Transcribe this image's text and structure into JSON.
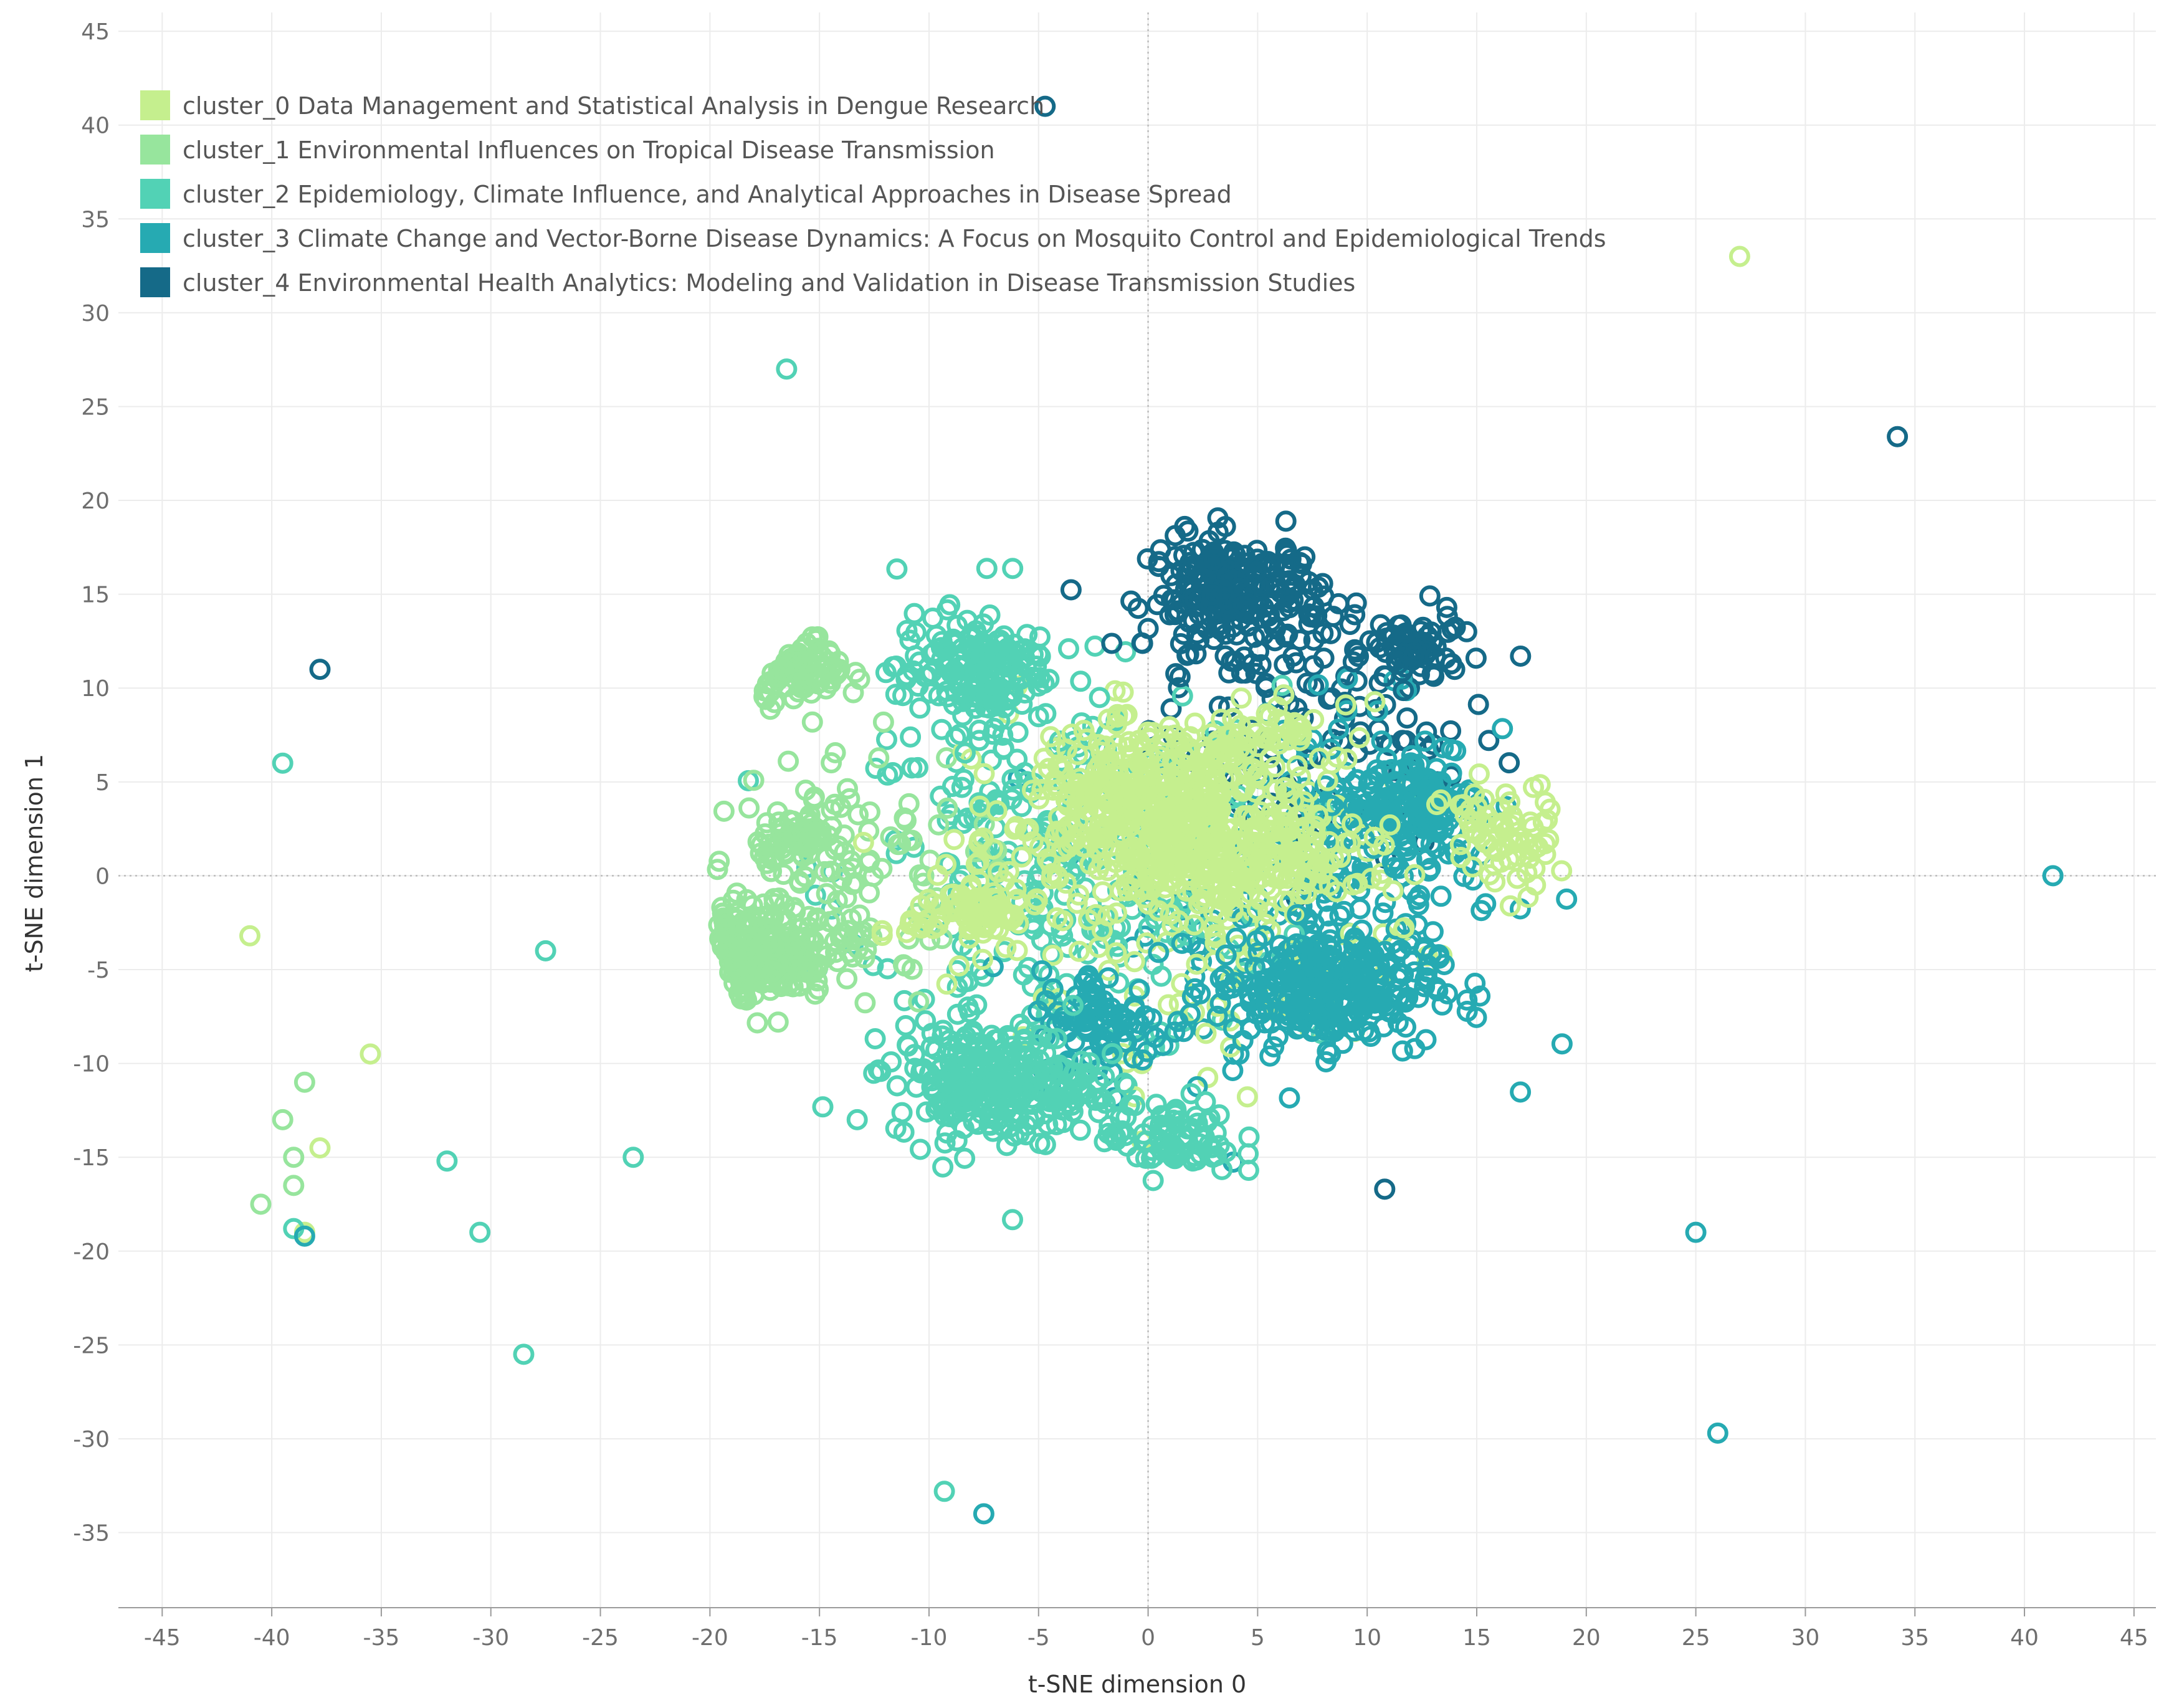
{
  "chart_data": {
    "type": "scatter",
    "title": "",
    "xlabel": "t-SNE dimension 0",
    "ylabel": "t-SNE dimension 1",
    "xlim": [
      -47,
      46
    ],
    "ylim": [
      -39,
      46
    ],
    "xticks": [
      -45,
      -40,
      -35,
      -30,
      -25,
      -20,
      -15,
      -10,
      -5,
      0,
      5,
      10,
      15,
      20,
      25,
      30,
      35,
      40,
      45
    ],
    "yticks": [
      -35,
      -30,
      -25,
      -20,
      -15,
      -10,
      -5,
      0,
      5,
      10,
      15,
      20,
      25,
      30,
      35,
      40,
      45
    ],
    "xtick_labels": [
      "-45",
      "-40",
      "-35",
      "-30",
      "-25",
      "-20",
      "-15",
      "-10",
      "-5",
      "0",
      "5",
      "10",
      "15",
      "20",
      "25",
      "30",
      "35",
      "40",
      "45"
    ],
    "ytick_labels": [
      "-35",
      "-30",
      "-25",
      "-20",
      "-15",
      "-10",
      "-5",
      "0",
      "5",
      "10",
      "15",
      "20",
      "25",
      "30",
      "35",
      "40",
      "45"
    ],
    "grid": true,
    "zero_lines": "dotted",
    "marker": "hollow-circle",
    "legend_position": "top-left",
    "series": [
      {
        "name": "cluster_0 Data Management and Statistical Analysis in Dengue Research",
        "color": "#c5ef8e",
        "dense_regions": [
          {
            "center": [
              0,
              4
            ],
            "spread": [
              5.5,
              3.5
            ],
            "count": 320
          },
          {
            "center": [
              4,
              1
            ],
            "spread": [
              6,
              2.5
            ],
            "count": 220
          },
          {
            "center": [
              -8,
              -2
            ],
            "spread": [
              3,
              2
            ],
            "count": 90
          },
          {
            "center": [
              16,
              2
            ],
            "spread": [
              2.5,
              3
            ],
            "count": 70
          },
          {
            "center": [
              5,
              7
            ],
            "spread": [
              3,
              2
            ],
            "count": 60
          }
        ],
        "scatter_region": {
          "center": [
            2,
            0
          ],
          "spread": [
            10,
            9
          ],
          "count": 260
        },
        "outliers": [
          [
            27,
            33
          ],
          [
            -41,
            -3.2
          ],
          [
            -38.5,
            -19
          ],
          [
            -37.8,
            -14.5
          ],
          [
            -35.5,
            -9.5
          ]
        ]
      },
      {
        "name": "cluster_1 Environmental Influences on Tropical Disease Transmission",
        "color": "#97e59d",
        "dense_regions": [
          {
            "center": [
              -18,
              -4
            ],
            "spread": [
              3.5,
              2.5
            ],
            "count": 260
          },
          {
            "center": [
              -16,
              11
            ],
            "spread": [
              2.2,
              1.8
            ],
            "count": 110
          },
          {
            "center": [
              -16,
              2
            ],
            "spread": [
              1.8,
              1.5
            ],
            "count": 60
          }
        ],
        "scatter_region": {
          "center": [
            -14,
            0
          ],
          "spread": [
            6,
            7
          ],
          "count": 110
        },
        "outliers": [
          [
            -39.5,
            -13
          ],
          [
            -40.5,
            -17.5
          ],
          [
            -39,
            -15
          ],
          [
            -38.5,
            -11
          ],
          [
            -39,
            -16.5
          ]
        ]
      },
      {
        "name": "cluster_2 Epidemiology, Climate Influence, and Analytical Approaches in Disease Spread",
        "color": "#52d2b5",
        "dense_regions": [
          {
            "center": [
              -7,
              -11
            ],
            "spread": [
              4.5,
              3
            ],
            "count": 280
          },
          {
            "center": [
              -8,
              11
            ],
            "spread": [
              3.5,
              3
            ],
            "count": 180
          },
          {
            "center": [
              1,
              -14
            ],
            "spread": [
              3,
              2
            ],
            "count": 80
          }
        ],
        "scatter_region": {
          "center": [
            -4,
            0
          ],
          "spread": [
            10,
            10
          ],
          "count": 300
        },
        "outliers": [
          [
            -16.5,
            27
          ],
          [
            -39.5,
            6
          ],
          [
            -27.5,
            -4
          ],
          [
            -23.5,
            -15
          ],
          [
            -30.5,
            -19
          ],
          [
            -28.5,
            -25.5
          ],
          [
            -32,
            -15.2
          ],
          [
            -9.3,
            -32.8
          ],
          [
            -39,
            -18.8
          ]
        ]
      },
      {
        "name": "cluster_3 Climate Change and Vector-Borne Disease Dynamics: A Focus on Mosquito Control and Epidemiological Trends",
        "color": "#26aab2",
        "dense_regions": [
          {
            "center": [
              8,
              -6
            ],
            "spread": [
              5,
              3
            ],
            "count": 280
          },
          {
            "center": [
              12,
              4
            ],
            "spread": [
              3,
              3
            ],
            "count": 130
          },
          {
            "center": [
              -2,
              -8
            ],
            "spread": [
              3,
              3
            ],
            "count": 90
          }
        ],
        "scatter_region": {
          "center": [
            8,
            0
          ],
          "spread": [
            8,
            9
          ],
          "count": 240
        },
        "outliers": [
          [
            41.3,
            0
          ],
          [
            25,
            -19
          ],
          [
            26,
            -29.7
          ],
          [
            -7.5,
            -34
          ],
          [
            -38.5,
            -19.2
          ]
        ]
      },
      {
        "name": "cluster_4 Environmental Health Analytics: Modeling and Validation in Disease Transmission Studies",
        "color": "#156a88",
        "dense_regions": [
          {
            "center": [
              4,
              15
            ],
            "spread": [
              4,
              3
            ],
            "count": 240
          },
          {
            "center": [
              12,
              12
            ],
            "spread": [
              2,
              2
            ],
            "count": 60
          }
        ],
        "scatter_region": {
          "center": [
            8,
            8
          ],
          "spread": [
            8,
            7
          ],
          "count": 120
        },
        "outliers": [
          [
            -4.7,
            41
          ],
          [
            34.2,
            23.4
          ],
          [
            -37.8,
            11
          ],
          [
            10.8,
            -16.7
          ],
          [
            17,
            11.7
          ]
        ]
      }
    ]
  }
}
